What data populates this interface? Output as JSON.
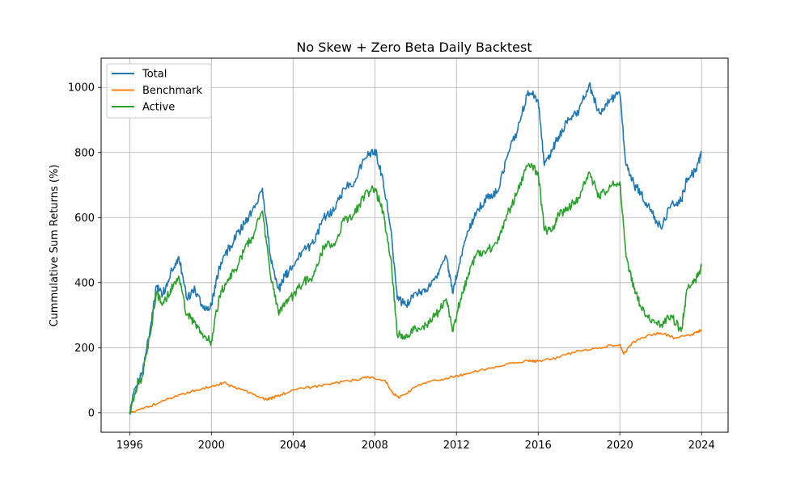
{
  "chart_data": {
    "type": "line",
    "title": "No Skew + Zero Beta Daily Backtest",
    "xlabel": "",
    "ylabel": "Cummulative Sum Returns (%)",
    "xlim": [
      1994.6,
      2025.3
    ],
    "ylim": [
      -60,
      1090
    ],
    "xticks": [
      1996,
      2000,
      2004,
      2008,
      2012,
      2016,
      2020,
      2024
    ],
    "yticks": [
      0,
      200,
      400,
      600,
      800,
      1000
    ],
    "grid": true,
    "legend_position": "upper-left",
    "series": [
      {
        "name": "Total",
        "color": "#1f77b4",
        "x": [
          1996.0,
          1996.3,
          1996.6,
          1997.0,
          1997.3,
          1997.6,
          1998.0,
          1998.4,
          1998.8,
          1999.2,
          1999.6,
          2000.0,
          2000.4,
          2000.8,
          2001.2,
          2001.6,
          2002.0,
          2002.5,
          2002.9,
          2003.3,
          2003.6,
          2004.0,
          2004.5,
          2005.0,
          2005.5,
          2006.0,
          2006.5,
          2007.0,
          2007.5,
          2008.0,
          2008.4,
          2008.8,
          2009.1,
          2009.5,
          2010.0,
          2010.5,
          2011.0,
          2011.5,
          2011.8,
          2012.2,
          2012.6,
          2013.0,
          2013.5,
          2014.0,
          2014.5,
          2015.0,
          2015.5,
          2016.0,
          2016.3,
          2016.7,
          2017.0,
          2017.5,
          2018.0,
          2018.5,
          2019.0,
          2019.5,
          2020.0,
          2020.3,
          2020.7,
          2021.0,
          2021.5,
          2022.0,
          2022.5,
          2023.0,
          2023.3,
          2023.7,
          2024.0
        ],
        "y": [
          0,
          80,
          120,
          260,
          390,
          360,
          430,
          480,
          350,
          380,
          320,
          330,
          450,
          500,
          540,
          580,
          620,
          690,
          480,
          380,
          420,
          450,
          500,
          520,
          600,
          620,
          690,
          710,
          780,
          810,
          720,
          560,
          350,
          330,
          370,
          380,
          420,
          480,
          370,
          480,
          560,
          620,
          660,
          680,
          790,
          870,
          990,
          960,
          760,
          810,
          850,
          900,
          930,
          1010,
          920,
          960,
          980,
          760,
          700,
          680,
          620,
          570,
          640,
          650,
          720,
          740,
          800
        ]
      },
      {
        "name": "Benchmark",
        "color": "#ff7f0e",
        "x": [
          1996.0,
          1997.0,
          1998.0,
          1999.0,
          2000.0,
          2000.6,
          2001.2,
          2002.0,
          2002.7,
          2003.2,
          2004.0,
          2005.0,
          2006.0,
          2007.0,
          2007.7,
          2008.5,
          2008.9,
          2009.2,
          2010.0,
          2011.0,
          2011.8,
          2012.5,
          2013.5,
          2014.5,
          2015.5,
          2016.0,
          2017.0,
          2018.0,
          2019.0,
          2020.0,
          2020.2,
          2020.6,
          2021.5,
          2022.0,
          2022.7,
          2023.5,
          2024.0
        ],
        "y": [
          0,
          20,
          45,
          65,
          80,
          92,
          75,
          60,
          40,
          50,
          70,
          80,
          90,
          100,
          110,
          100,
          60,
          45,
          80,
          100,
          110,
          120,
          135,
          150,
          160,
          158,
          170,
          190,
          200,
          210,
          180,
          215,
          240,
          245,
          230,
          240,
          255
        ]
      },
      {
        "name": "Active",
        "color": "#2ca02c",
        "x": [
          1996.0,
          1996.3,
          1996.6,
          1997.0,
          1997.3,
          1997.6,
          1998.0,
          1998.4,
          1998.8,
          1999.2,
          1999.6,
          2000.0,
          2000.4,
          2000.8,
          2001.2,
          2001.6,
          2002.0,
          2002.5,
          2002.9,
          2003.3,
          2003.6,
          2004.0,
          2004.5,
          2005.0,
          2005.5,
          2006.0,
          2006.5,
          2007.0,
          2007.5,
          2008.0,
          2008.4,
          2008.8,
          2009.1,
          2009.5,
          2010.0,
          2010.5,
          2011.0,
          2011.5,
          2011.8,
          2012.2,
          2012.6,
          2013.0,
          2013.5,
          2014.0,
          2014.5,
          2015.0,
          2015.5,
          2016.0,
          2016.3,
          2016.7,
          2017.0,
          2017.5,
          2018.0,
          2018.5,
          2019.0,
          2019.5,
          2020.0,
          2020.3,
          2020.7,
          2021.0,
          2021.5,
          2022.0,
          2022.5,
          2023.0,
          2023.3,
          2023.7,
          2024.0
        ],
        "y": [
          0,
          70,
          110,
          240,
          370,
          330,
          380,
          420,
          300,
          280,
          230,
          220,
          360,
          410,
          440,
          500,
          540,
          620,
          420,
          300,
          340,
          360,
          400,
          420,
          510,
          520,
          590,
          610,
          670,
          690,
          620,
          470,
          240,
          230,
          260,
          270,
          300,
          350,
          250,
          350,
          430,
          490,
          500,
          520,
          610,
          680,
          760,
          740,
          560,
          560,
          610,
          630,
          660,
          740,
          660,
          700,
          710,
          480,
          380,
          330,
          280,
          270,
          300,
          250,
          380,
          410,
          450
        ]
      }
    ]
  }
}
